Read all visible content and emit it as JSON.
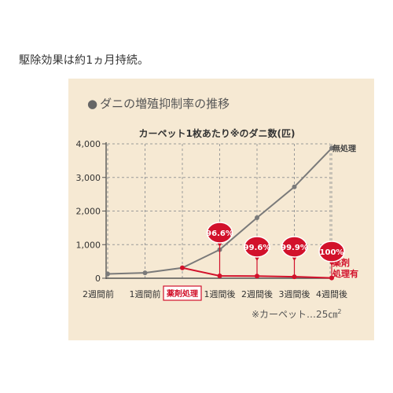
{
  "intro_text": "駆除効果は約1ヵ月持続。",
  "panel": {
    "bullet": "●",
    "title": "ダニの増殖抑制率の推移"
  },
  "footnote": {
    "text": "※カーペット…25㎝",
    "superscript": "2"
  },
  "chart_data": {
    "type": "line",
    "title": "カーペット1枚あたり※のダニ数(匹)",
    "categories": [
      "2週間前",
      "1週間前",
      "薬剤処理",
      "1週間後",
      "2週間後",
      "3週間後",
      "4週間後"
    ],
    "ylim": [
      0,
      4000
    ],
    "yticks": [
      0,
      1000,
      2000,
      3000,
      4000
    ],
    "ytick_labels": [
      "0",
      "1,000",
      "2,000",
      "3,000",
      "4,000"
    ],
    "grid": true,
    "series": [
      {
        "name": "無処理",
        "color": "#7a7a7a",
        "values": [
          130,
          160,
          310,
          850,
          1800,
          2720,
          3870
        ]
      },
      {
        "name": "薬剤処理有",
        "color": "#d2112b",
        "values": [
          null,
          null,
          310,
          70,
          65,
          45,
          10
        ]
      }
    ],
    "annotations": [
      {
        "category_index": 3,
        "text": "96.6%"
      },
      {
        "category_index": 4,
        "text": "99.6%"
      },
      {
        "category_index": 5,
        "text": "99.9%"
      },
      {
        "category_index": 6,
        "text": "100%"
      }
    ],
    "highlighted_category_index": 2,
    "colors": {
      "panel_background": "#f6e9d3",
      "grid": "#9a9a9a",
      "axis": "#555555",
      "treated": "#d2112b",
      "untreated": "#7a7a7a"
    }
  }
}
